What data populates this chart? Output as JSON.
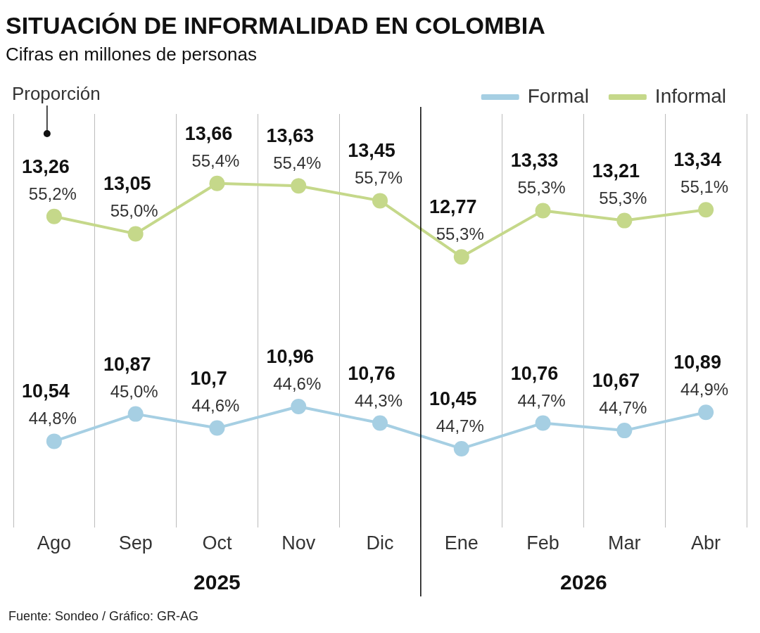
{
  "chart_data": {
    "type": "line",
    "title": "SITUACIÓN DE INFORMALIDAD EN COLOMBIA",
    "subtitle": "Cifras en millones de personas",
    "categories": [
      "Ago",
      "Sep",
      "Oct",
      "Nov",
      "Dic",
      "Ene",
      "Feb",
      "Mar",
      "Abr"
    ],
    "series": [
      {
        "name": "Formal",
        "color": "#a6cfe3",
        "values": [
          10.54,
          10.87,
          10.7,
          10.96,
          10.76,
          10.45,
          10.76,
          10.67,
          10.89
        ],
        "value_labels": [
          "10,54",
          "10,87",
          "10,7",
          "10,96",
          "10,76",
          "10,45",
          "10,76",
          "10,67",
          "10,89"
        ]
      },
      {
        "name": "Informal",
        "color": "#c5d88a",
        "values": [
          13.26,
          13.05,
          13.66,
          13.63,
          13.45,
          12.77,
          13.33,
          13.21,
          13.34
        ],
        "value_labels": [
          "13,26",
          "13,05",
          "13,66",
          "13,63",
          "13,45",
          "12,77",
          "13,33",
          "13,21",
          "13,34"
        ]
      }
    ],
    "grid": "x",
    "legend": "top right",
    "marker": "circle",
    "line_style": "solid",
    "ref_lines": [
      {
        "axis": "x",
        "value": "Ene",
        "color": "#000000"
      }
    ],
    "annotations": [
      "2025",
      "2026",
      "Proporción",
      "Fuente: Sondeo / Gráfico: GR-AG",
      {
        "text": "44,8%",
        "x": "Ago",
        "y": 10.54
      },
      {
        "text": "45,0%",
        "x": "Sep",
        "y": 10.87
      },
      {
        "text": "44,6%",
        "x": "Oct",
        "y": 10.7
      },
      {
        "text": "44,6%",
        "x": "Nov",
        "y": 10.96
      },
      {
        "text": "44,3%",
        "x": "Dic",
        "y": 10.76
      },
      {
        "text": "44,7%",
        "x": "Ene",
        "y": 10.45
      },
      {
        "text": "44,7%",
        "x": "Feb",
        "y": 10.76
      },
      {
        "text": "44,7%",
        "x": "Mar",
        "y": 10.67
      },
      {
        "text": "44,9%",
        "x": "Abr",
        "y": 10.89
      },
      {
        "text": "55,2%",
        "x": "Ago",
        "y": 13.26
      },
      {
        "text": "55,0%",
        "x": "Sep",
        "y": 13.05
      },
      {
        "text": "55,4%",
        "x": "Oct",
        "y": 13.66
      },
      {
        "text": "55,4%",
        "x": "Nov",
        "y": 13.63
      },
      {
        "text": "55,7%",
        "x": "Dic",
        "y": 13.45
      },
      {
        "text": "55,3%",
        "x": "Ene",
        "y": 12.77
      },
      {
        "text": "55,3%",
        "x": "Feb",
        "y": 13.33
      },
      {
        "text": "55,3%",
        "x": "Mar",
        "y": 13.21
      },
      {
        "text": "55,1%",
        "x": "Abr",
        "y": 13.34
      }
    ]
  }
}
